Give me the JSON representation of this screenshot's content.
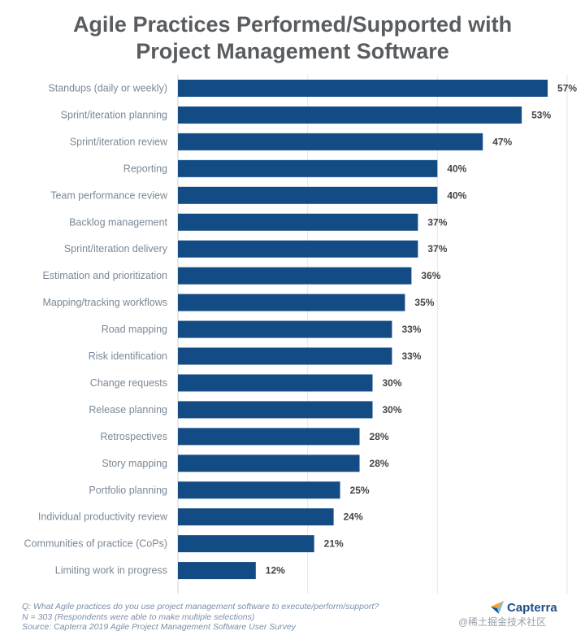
{
  "title_line1": "Agile Practices Performed/Supported with",
  "title_line2": "Project Management Software",
  "chart_data": {
    "type": "bar",
    "orientation": "horizontal",
    "title": "Agile Practices Performed/Supported with Project Management Software",
    "categories": [
      "Standups (daily or weekly)",
      "Sprint/iteration planning",
      "Sprint/iteration review",
      "Reporting",
      "Team performance review",
      "Backlog management",
      "Sprint/iteration delivery",
      "Estimation and prioritization",
      "Mapping/tracking workflows",
      "Road mapping",
      "Risk identification",
      "Change requests",
      "Release planning",
      "Retrospectives",
      "Story mapping",
      "Portfolio planning",
      "Individual productivity review",
      "Communities of practice (CoPs)",
      "Limiting work in progress"
    ],
    "values": [
      57,
      53,
      47,
      40,
      40,
      37,
      37,
      36,
      35,
      33,
      33,
      30,
      30,
      28,
      28,
      25,
      24,
      21,
      12
    ],
    "value_labels": [
      "57%",
      "53%",
      "47%",
      "40%",
      "40%",
      "37%",
      "37%",
      "36%",
      "35%",
      "33%",
      "33%",
      "30%",
      "30%",
      "28%",
      "28%",
      "25%",
      "24%",
      "21%",
      "12%"
    ],
    "xlim": [
      0,
      60
    ],
    "grid_values": [
      20,
      40,
      60
    ],
    "bar_color": "#134b85",
    "grid_color": "#e6e6e6"
  },
  "footer": {
    "question": "Q: What Agile practices do you use project management software to execute/perform/support?",
    "sample": "N = 303 (Respondents were able to make multiple selections)",
    "source": "Source: Capterra 2019 Agile Project Management Software User Survey"
  },
  "logo": {
    "text": "Capterra",
    "icon": "capterra-arrow-icon"
  },
  "watermark": "@稀土掘金技术社区"
}
